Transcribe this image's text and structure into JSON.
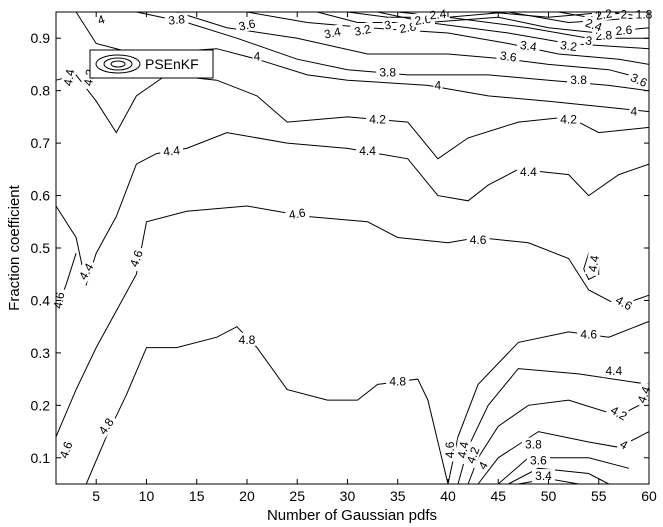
{
  "chart_data": {
    "type": "contour",
    "xlabel": "Number of Gaussian pdfs",
    "ylabel": "Fraction coefficient",
    "xlim": [
      1,
      60
    ],
    "ylim": [
      0.05,
      0.95
    ],
    "xticks": [
      5,
      10,
      15,
      20,
      25,
      30,
      35,
      40,
      45,
      50,
      55,
      60
    ],
    "yticks": [
      0.1,
      0.2,
      0.3,
      0.4,
      0.5,
      0.6,
      0.7,
      0.8,
      0.9
    ],
    "legend": {
      "position": "top-left",
      "entries": [
        "PSEnKF"
      ]
    },
    "grid": false,
    "contour_lines": [
      {
        "level": "4.8",
        "points": [
          [
            4,
            0.05
          ],
          [
            6,
            0.14
          ],
          [
            8,
            0.22
          ],
          [
            10,
            0.31
          ],
          [
            13,
            0.31
          ],
          [
            17,
            0.33
          ],
          [
            19,
            0.35
          ],
          [
            21,
            0.31
          ],
          [
            24,
            0.23
          ],
          [
            28,
            0.21
          ],
          [
            31,
            0.21
          ],
          [
            33,
            0.24
          ],
          [
            37,
            0.25
          ],
          [
            38,
            0.21
          ],
          [
            39,
            0.13
          ],
          [
            40,
            0.05
          ]
        ]
      },
      {
        "level": "4.6",
        "points": [
          [
            1,
            0.14
          ],
          [
            3,
            0.23
          ],
          [
            5,
            0.31
          ],
          [
            7,
            0.38
          ],
          [
            9,
            0.45
          ],
          [
            10,
            0.55
          ],
          [
            14,
            0.57
          ],
          [
            20,
            0.58
          ],
          [
            26,
            0.56
          ],
          [
            32,
            0.55
          ],
          [
            35,
            0.52
          ],
          [
            40,
            0.51
          ],
          [
            43,
            0.52
          ],
          [
            48,
            0.51
          ],
          [
            52,
            0.48
          ],
          [
            54,
            0.42
          ],
          [
            57,
            0.39
          ],
          [
            60,
            0.41
          ]
        ]
      },
      {
        "level": "4.6",
        "points": [
          [
            1,
            0.38
          ],
          [
            2,
            0.43
          ],
          [
            3,
            0.49
          ]
        ]
      },
      {
        "level": "4.6",
        "points": [
          [
            40,
            0.05
          ],
          [
            41,
            0.14
          ],
          [
            43,
            0.24
          ],
          [
            47,
            0.32
          ],
          [
            52,
            0.34
          ],
          [
            56,
            0.33
          ],
          [
            60,
            0.36
          ]
        ]
      },
      {
        "level": "4.4",
        "points": [
          [
            1,
            0.58
          ],
          [
            3,
            0.52
          ],
          [
            4,
            0.43
          ],
          [
            5,
            0.49
          ],
          [
            7,
            0.56
          ],
          [
            9,
            0.66
          ],
          [
            11,
            0.68
          ],
          [
            14,
            0.69
          ],
          [
            18,
            0.72
          ],
          [
            24,
            0.7
          ],
          [
            30,
            0.69
          ],
          [
            36,
            0.67
          ],
          [
            39,
            0.6
          ],
          [
            42,
            0.59
          ],
          [
            44,
            0.62
          ],
          [
            47,
            0.65
          ],
          [
            52,
            0.64
          ],
          [
            54,
            0.6
          ],
          [
            57,
            0.64
          ],
          [
            60,
            0.66
          ]
        ]
      },
      {
        "level": "4.4",
        "points": [
          [
            53.5,
            0.46
          ],
          [
            54,
            0.44
          ],
          [
            55,
            0.45
          ],
          [
            55,
            0.47
          ],
          [
            54,
            0.49
          ],
          [
            53.5,
            0.46
          ]
        ]
      },
      {
        "level": "4.4",
        "points": [
          [
            41,
            0.05
          ],
          [
            42,
            0.12
          ],
          [
            44,
            0.2
          ],
          [
            47,
            0.27
          ],
          [
            53,
            0.26
          ],
          [
            60,
            0.24
          ]
        ]
      },
      {
        "level": "4.2",
        "points": [
          [
            1,
            0.82
          ],
          [
            3,
            0.83
          ],
          [
            5,
            0.78
          ],
          [
            7,
            0.72
          ],
          [
            9,
            0.79
          ],
          [
            12,
            0.83
          ],
          [
            17,
            0.82
          ],
          [
            21,
            0.79
          ],
          [
            24,
            0.74
          ],
          [
            30,
            0.75
          ],
          [
            36,
            0.74
          ],
          [
            39,
            0.67
          ],
          [
            42,
            0.71
          ],
          [
            47,
            0.74
          ],
          [
            52,
            0.75
          ],
          [
            55,
            0.72
          ],
          [
            60,
            0.73
          ]
        ]
      },
      {
        "level": "4.2",
        "points": [
          [
            42,
            0.05
          ],
          [
            43,
            0.1
          ],
          [
            45,
            0.16
          ],
          [
            48,
            0.2
          ],
          [
            52,
            0.21
          ],
          [
            57,
            0.18
          ],
          [
            60,
            0.21
          ]
        ]
      },
      {
        "level": "4",
        "points": [
          [
            3,
            0.95
          ],
          [
            5,
            0.89
          ],
          [
            9,
            0.87
          ],
          [
            17,
            0.88
          ],
          [
            21,
            0.86
          ],
          [
            26,
            0.83
          ],
          [
            30,
            0.82
          ],
          [
            38,
            0.81
          ],
          [
            44,
            0.79
          ],
          [
            50,
            0.78
          ],
          [
            55,
            0.77
          ],
          [
            60,
            0.76
          ]
        ]
      },
      {
        "level": "4",
        "points": [
          [
            43,
            0.05
          ],
          [
            45,
            0.1
          ],
          [
            49,
            0.15
          ],
          [
            54,
            0.13
          ],
          [
            57,
            0.12
          ],
          [
            60,
            0.15
          ]
        ]
      },
      {
        "level": "3.8",
        "points": [
          [
            9,
            0.95
          ],
          [
            14,
            0.93
          ],
          [
            19,
            0.9
          ],
          [
            25,
            0.86
          ],
          [
            30,
            0.84
          ],
          [
            36,
            0.83
          ],
          [
            44,
            0.83
          ],
          [
            50,
            0.82
          ],
          [
            56,
            0.81
          ],
          [
            60,
            0.8
          ]
        ]
      },
      {
        "level": "3.8",
        "points": [
          [
            45,
            0.05
          ],
          [
            48,
            0.1
          ],
          [
            54,
            0.1
          ],
          [
            58,
            0.08
          ]
        ]
      },
      {
        "level": "3.6",
        "points": [
          [
            13,
            0.95
          ],
          [
            18,
            0.92
          ],
          [
            25,
            0.9
          ],
          [
            32,
            0.87
          ],
          [
            40,
            0.87
          ],
          [
            46,
            0.86
          ],
          [
            50,
            0.85
          ],
          [
            56,
            0.84
          ],
          [
            60,
            0.82
          ]
        ]
      },
      {
        "level": "3.6",
        "points": [
          [
            46,
            0.05
          ],
          [
            49,
            0.08
          ],
          [
            54,
            0.07
          ],
          [
            56,
            0.05
          ]
        ]
      },
      {
        "level": "3.4",
        "points": [
          [
            20,
            0.95
          ],
          [
            26,
            0.93
          ],
          [
            32,
            0.92
          ],
          [
            40,
            0.91
          ],
          [
            46,
            0.89
          ],
          [
            51,
            0.87
          ],
          [
            57,
            0.86
          ],
          [
            60,
            0.85
          ]
        ]
      },
      {
        "level": "3.4",
        "points": [
          [
            47,
            0.05
          ],
          [
            50,
            0.06
          ],
          [
            53,
            0.05
          ]
        ]
      },
      {
        "level": "3.2",
        "points": [
          [
            27,
            0.95
          ],
          [
            31,
            0.93
          ],
          [
            38,
            0.93
          ],
          [
            46,
            0.91
          ],
          [
            52,
            0.89
          ],
          [
            60,
            0.88
          ]
        ]
      },
      {
        "level": "3",
        "points": [
          [
            30,
            0.95
          ],
          [
            34,
            0.94
          ],
          [
            40,
            0.94
          ],
          [
            48,
            0.92
          ],
          [
            54,
            0.9
          ],
          [
            60,
            0.9
          ]
        ]
      },
      {
        "level": "2.8",
        "points": [
          [
            33,
            0.95
          ],
          [
            38,
            0.93
          ],
          [
            45,
            0.94
          ],
          [
            50,
            0.92
          ],
          [
            55,
            0.91
          ],
          [
            60,
            0.92
          ]
        ]
      },
      {
        "level": "2.6",
        "points": [
          [
            35,
            0.95
          ],
          [
            40,
            0.94
          ],
          [
            46,
            0.95
          ],
          [
            52,
            0.93
          ],
          [
            60,
            0.94
          ]
        ]
      },
      {
        "level": "2.4",
        "points": [
          [
            37,
            0.95
          ],
          [
            44,
            0.95
          ],
          [
            50,
            0.94
          ],
          [
            56,
            0.95
          ]
        ]
      },
      {
        "level": "2.2",
        "points": [
          [
            51,
            0.95
          ],
          [
            54,
            0.94
          ],
          [
            58,
            0.95
          ]
        ]
      },
      {
        "level": "1.8",
        "points": [
          [
            56,
            0.95
          ],
          [
            60,
            0.94
          ]
        ]
      }
    ],
    "contour_labels": [
      {
        "text": "4",
        "x": 5.5,
        "y": 0.935,
        "rot": -20
      },
      {
        "text": "3.8",
        "x": 13,
        "y": 0.935,
        "rot": -6
      },
      {
        "text": "3.6",
        "x": 20,
        "y": 0.925,
        "rot": -12
      },
      {
        "text": "3.4",
        "x": 28.5,
        "y": 0.91,
        "rot": -12
      },
      {
        "text": "3.2",
        "x": 31.5,
        "y": 0.915,
        "rot": -12
      },
      {
        "text": "3",
        "x": 34,
        "y": 0.925,
        "rot": -12
      },
      {
        "text": "2.8",
        "x": 36,
        "y": 0.92,
        "rot": -10
      },
      {
        "text": "2.6",
        "x": 37.5,
        "y": 0.935,
        "rot": -8
      },
      {
        "text": "2.4",
        "x": 39,
        "y": 0.945,
        "rot": -6
      },
      {
        "text": "3.6",
        "x": 46,
        "y": 0.865,
        "rot": 8
      },
      {
        "text": "3.4",
        "x": 48,
        "y": 0.885,
        "rot": 8
      },
      {
        "text": "3.2",
        "x": 52,
        "y": 0.885,
        "rot": 8
      },
      {
        "text": "3",
        "x": 54,
        "y": 0.895,
        "rot": 8
      },
      {
        "text": "2.8",
        "x": 55.5,
        "y": 0.905,
        "rot": -4
      },
      {
        "text": "2.6",
        "x": 57.5,
        "y": 0.915,
        "rot": -4
      },
      {
        "text": "2.4",
        "x": 54.5,
        "y": 0.925,
        "rot": 20
      },
      {
        "text": "2.2",
        "x": 55.5,
        "y": 0.945,
        "rot": -10
      },
      {
        "text": "2",
        "x": 57.5,
        "y": 0.945,
        "rot": 0
      },
      {
        "text": "1.8",
        "x": 59.5,
        "y": 0.945,
        "rot": 0
      },
      {
        "text": "3.8",
        "x": 34,
        "y": 0.835,
        "rot": 0
      },
      {
        "text": "4",
        "x": 21,
        "y": 0.865,
        "rot": 0
      },
      {
        "text": "4",
        "x": 39,
        "y": 0.81,
        "rot": 0
      },
      {
        "text": "3.8",
        "x": 53,
        "y": 0.82,
        "rot": 0
      },
      {
        "text": "3.6",
        "x": 59,
        "y": 0.82,
        "rot": 25
      },
      {
        "text": "4",
        "x": 58.5,
        "y": 0.76,
        "rot": 0
      },
      {
        "text": "4.2",
        "x": 33,
        "y": 0.745,
        "rot": 0
      },
      {
        "text": "4.2",
        "x": 52,
        "y": 0.745,
        "rot": 0
      },
      {
        "text": "4.4",
        "x": 12.5,
        "y": 0.685,
        "rot": -5
      },
      {
        "text": "4.4",
        "x": 32,
        "y": 0.685,
        "rot": 0
      },
      {
        "text": "4.4",
        "x": 48,
        "y": 0.645,
        "rot": 0
      },
      {
        "text": "4.6",
        "x": 25,
        "y": 0.565,
        "rot": -10
      },
      {
        "text": "4.6",
        "x": 43,
        "y": 0.515,
        "rot": 0
      },
      {
        "text": "4.6",
        "x": 9,
        "y": 0.48,
        "rot": -70
      },
      {
        "text": "4.4",
        "x": 54.5,
        "y": 0.47,
        "rot": -80
      },
      {
        "text": "4.6",
        "x": 57.5,
        "y": 0.395,
        "rot": 30
      },
      {
        "text": "4.6",
        "x": 54,
        "y": 0.335,
        "rot": 0
      },
      {
        "text": "4.4",
        "x": 56.5,
        "y": 0.265,
        "rot": 0
      },
      {
        "text": "4.4",
        "x": 59.5,
        "y": 0.22,
        "rot": -70
      },
      {
        "text": "4.2",
        "x": 57,
        "y": 0.185,
        "rot": 30
      },
      {
        "text": "4",
        "x": 57.5,
        "y": 0.125,
        "rot": 30
      },
      {
        "text": "4.8",
        "x": 20,
        "y": 0.325,
        "rot": 0
      },
      {
        "text": "4.8",
        "x": 35,
        "y": 0.245,
        "rot": 0
      },
      {
        "text": "4.8",
        "x": 6,
        "y": 0.16,
        "rot": -55
      },
      {
        "text": "4.6",
        "x": 2,
        "y": 0.115,
        "rot": -70
      },
      {
        "text": "4.6",
        "x": 1.3,
        "y": 0.4,
        "rot": -80
      },
      {
        "text": "4.4",
        "x": 2.3,
        "y": 0.825,
        "rot": -80
      },
      {
        "text": "4.4",
        "x": 4,
        "y": 0.455,
        "rot": -60
      },
      {
        "text": "4.2",
        "x": 4.3,
        "y": 0.825,
        "rot": -80
      },
      {
        "text": "4.6",
        "x": 40.2,
        "y": 0.115,
        "rot": -90
      },
      {
        "text": "4.4",
        "x": 41.5,
        "y": 0.115,
        "rot": -80
      },
      {
        "text": "4.2",
        "x": 42.5,
        "y": 0.105,
        "rot": -70
      },
      {
        "text": "4",
        "x": 43.5,
        "y": 0.085,
        "rot": -60
      },
      {
        "text": "3.8",
        "x": 48.5,
        "y": 0.125,
        "rot": 0
      },
      {
        "text": "3.6",
        "x": 49,
        "y": 0.095,
        "rot": 0
      },
      {
        "text": "3.4",
        "x": 49.5,
        "y": 0.065,
        "rot": 0
      }
    ]
  }
}
